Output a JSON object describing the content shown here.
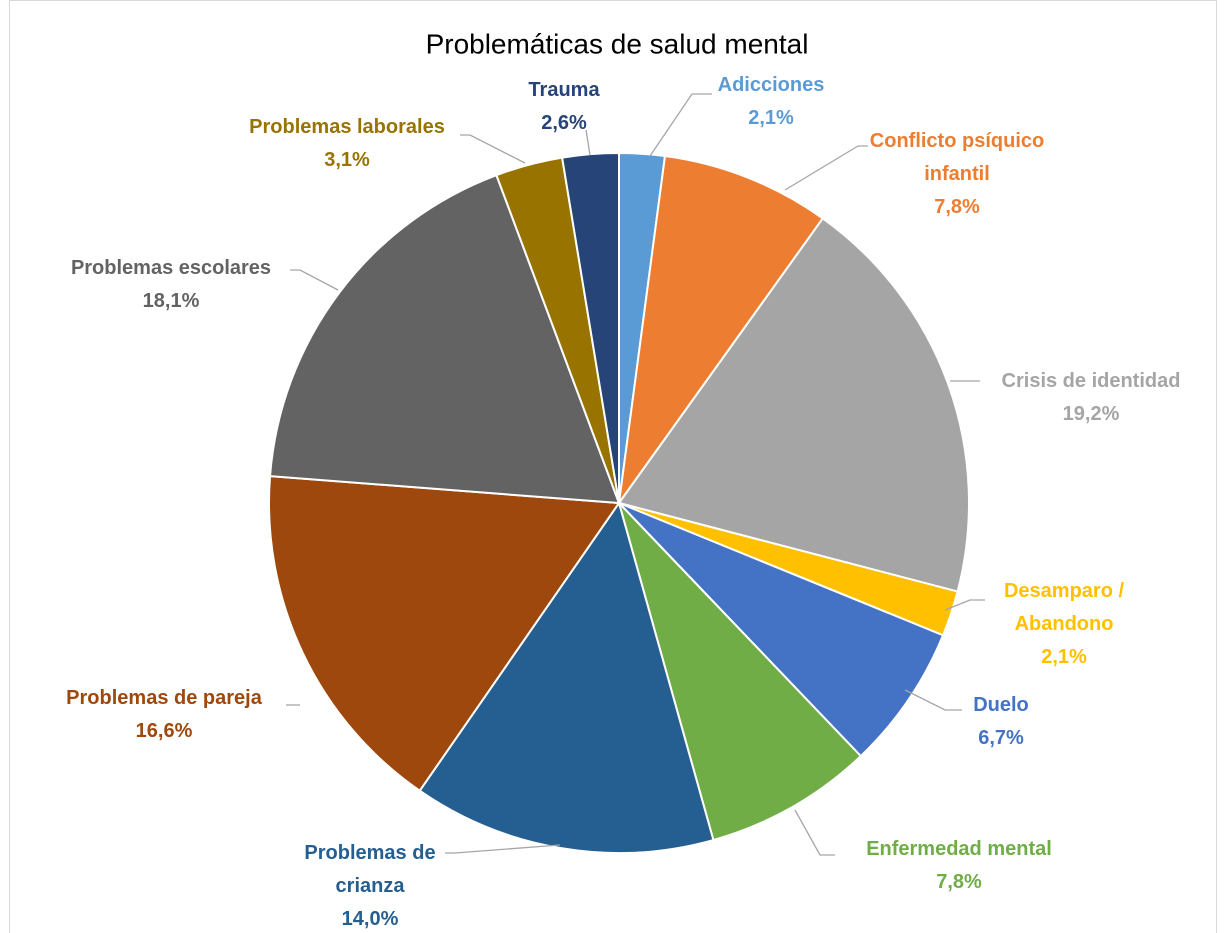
{
  "chart_data": {
    "type": "pie",
    "title": "Problemáticas de salud mental",
    "categories": [
      "Adicciones",
      "Conflicto psíquico infantil",
      "Crisis de identidad",
      "Desamparo / Abandono",
      "Duelo",
      "Enfermedad mental",
      "Problemas de crianza",
      "Problemas de pareja",
      "Problemas escolares",
      "Problemas laborales",
      "Trauma"
    ],
    "values": [
      2.1,
      7.8,
      19.2,
      2.1,
      6.7,
      7.8,
      14.0,
      16.6,
      18.1,
      3.1,
      2.6
    ],
    "value_labels": [
      "2,1%",
      "7,8%",
      "19,2%",
      "2,1%",
      "6,7%",
      "7,8%",
      "14,0%",
      "16,6%",
      "18,1%",
      "3,1%",
      "2,6%"
    ],
    "colors": [
      "#5b9bd5",
      "#ed7d31",
      "#a5a5a5",
      "#ffc000",
      "#4472c4",
      "#70ad47",
      "#255e91",
      "#9e480e",
      "#636363",
      "#997300",
      "#264478"
    ]
  }
}
